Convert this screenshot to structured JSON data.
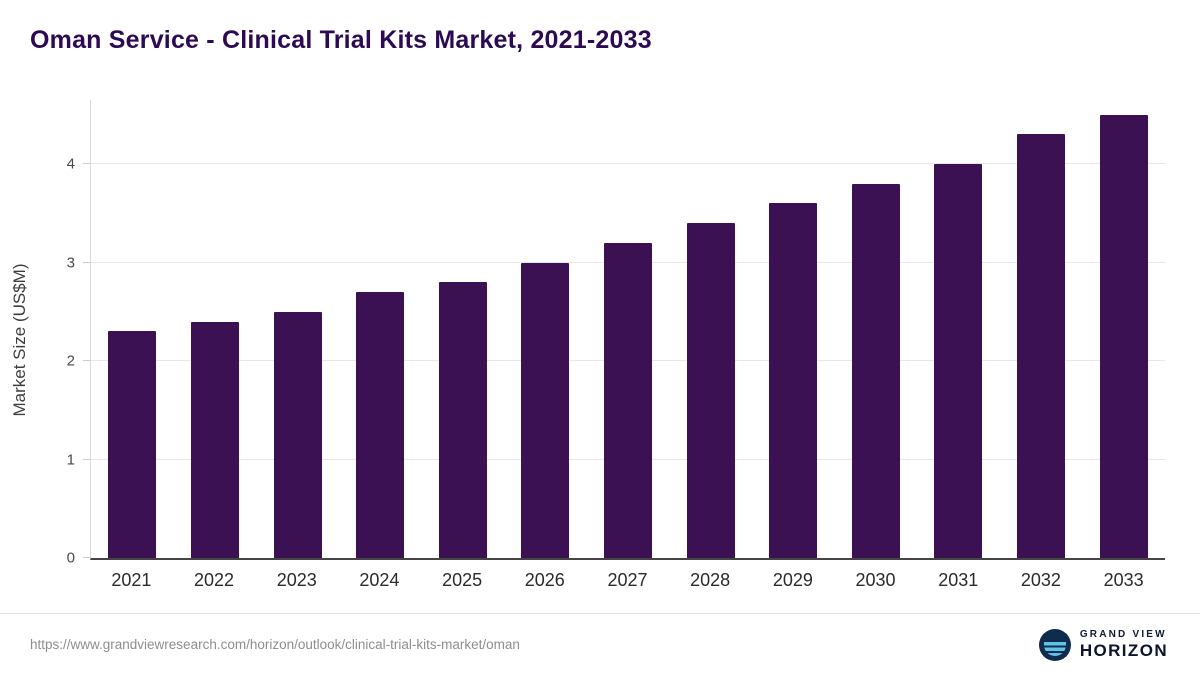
{
  "chart_data": {
    "type": "bar",
    "title": "Oman Service - Clinical Trial Kits Market, 2021-2033",
    "xlabel": "",
    "ylabel": "Market Size (US$M)",
    "categories": [
      "2021",
      "2022",
      "2023",
      "2024",
      "2025",
      "2026",
      "2027",
      "2028",
      "2029",
      "2030",
      "2031",
      "2032",
      "2033"
    ],
    "values": [
      2.3,
      2.4,
      2.5,
      2.7,
      2.8,
      3.0,
      3.2,
      3.4,
      3.6,
      3.8,
      4.0,
      4.3,
      4.5
    ],
    "yticks": [
      0,
      1,
      2,
      3,
      4
    ],
    "ylim": [
      0,
      4.65
    ],
    "bar_color": "#3b1153",
    "grid": "horizontal",
    "legend": "none"
  },
  "colors": {
    "title": "#2d0a54",
    "gridline": "#e8e8e8",
    "axis_text": "#4a4a4a"
  },
  "footer": {
    "source_url": "https://www.grandviewresearch.com/horizon/outlook/clinical-trial-kits-market/oman",
    "logo": {
      "line1": "GRAND VIEW",
      "line2": "HORIZON"
    }
  }
}
